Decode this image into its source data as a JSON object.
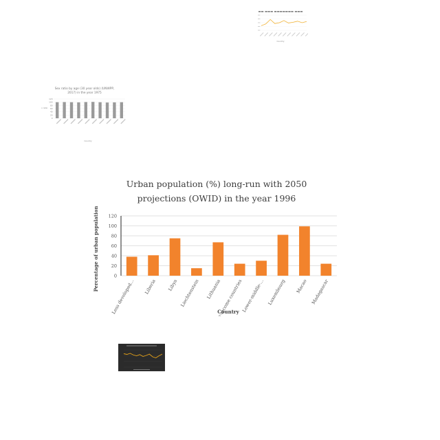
{
  "chart_data": [
    {
      "type": "bar",
      "title": "Urban population (%) long-run with 2050 projections (OWID) in the year 1996",
      "title_lines": [
        "Urban population (%) long-run with 2050",
        "projections (OWID) in the year 1996"
      ],
      "xlabel": "Country",
      "ylabel": "Percentage of urban population",
      "categories": [
        "Less developed...",
        "Liberia",
        "Libya",
        "Liechtenstein",
        "Lithuania",
        "Low-income countries",
        "Lower-middle-...",
        "Luxembourg",
        "Macao",
        "Madagascar"
      ],
      "values": [
        38,
        41,
        75,
        15,
        67,
        24,
        30,
        82,
        99,
        24
      ],
      "yticks": [
        0,
        20,
        40,
        60,
        80,
        100,
        120
      ],
      "ylim": [
        0,
        120
      ],
      "bar_color": "#f2832c",
      "grid": true
    },
    {
      "type": "bar",
      "title": "Sex ratio by age (30 year olds) (UNWPP, 2017) in the year 1975",
      "title_lines": [
        "Sex ratio by age (30 year olds) (UNWPP,",
        "2017) in the year 1975"
      ],
      "xlabel": "Country",
      "ylabel": "Sex ratio",
      "values": [
        100,
        101,
        100,
        99,
        101,
        102,
        100,
        98,
        99,
        100
      ],
      "yticks": [
        0,
        20,
        40,
        60,
        80,
        100,
        120
      ],
      "ylim": [
        0,
        120
      ],
      "bar_color": "#9a9a9a",
      "grid": true
    },
    {
      "type": "line",
      "title": "",
      "xlabel": "Country",
      "values": [
        30,
        42,
        71,
        44,
        50,
        64,
        48,
        53,
        60,
        50,
        58
      ],
      "line_color": "#f2b233"
    },
    {
      "type": "line",
      "title": "",
      "values": [
        62,
        58,
        64,
        55,
        50,
        57,
        46,
        52,
        60,
        44,
        38,
        50,
        60
      ],
      "line_color": "#e8a317",
      "background": "#2b2b2b"
    }
  ]
}
